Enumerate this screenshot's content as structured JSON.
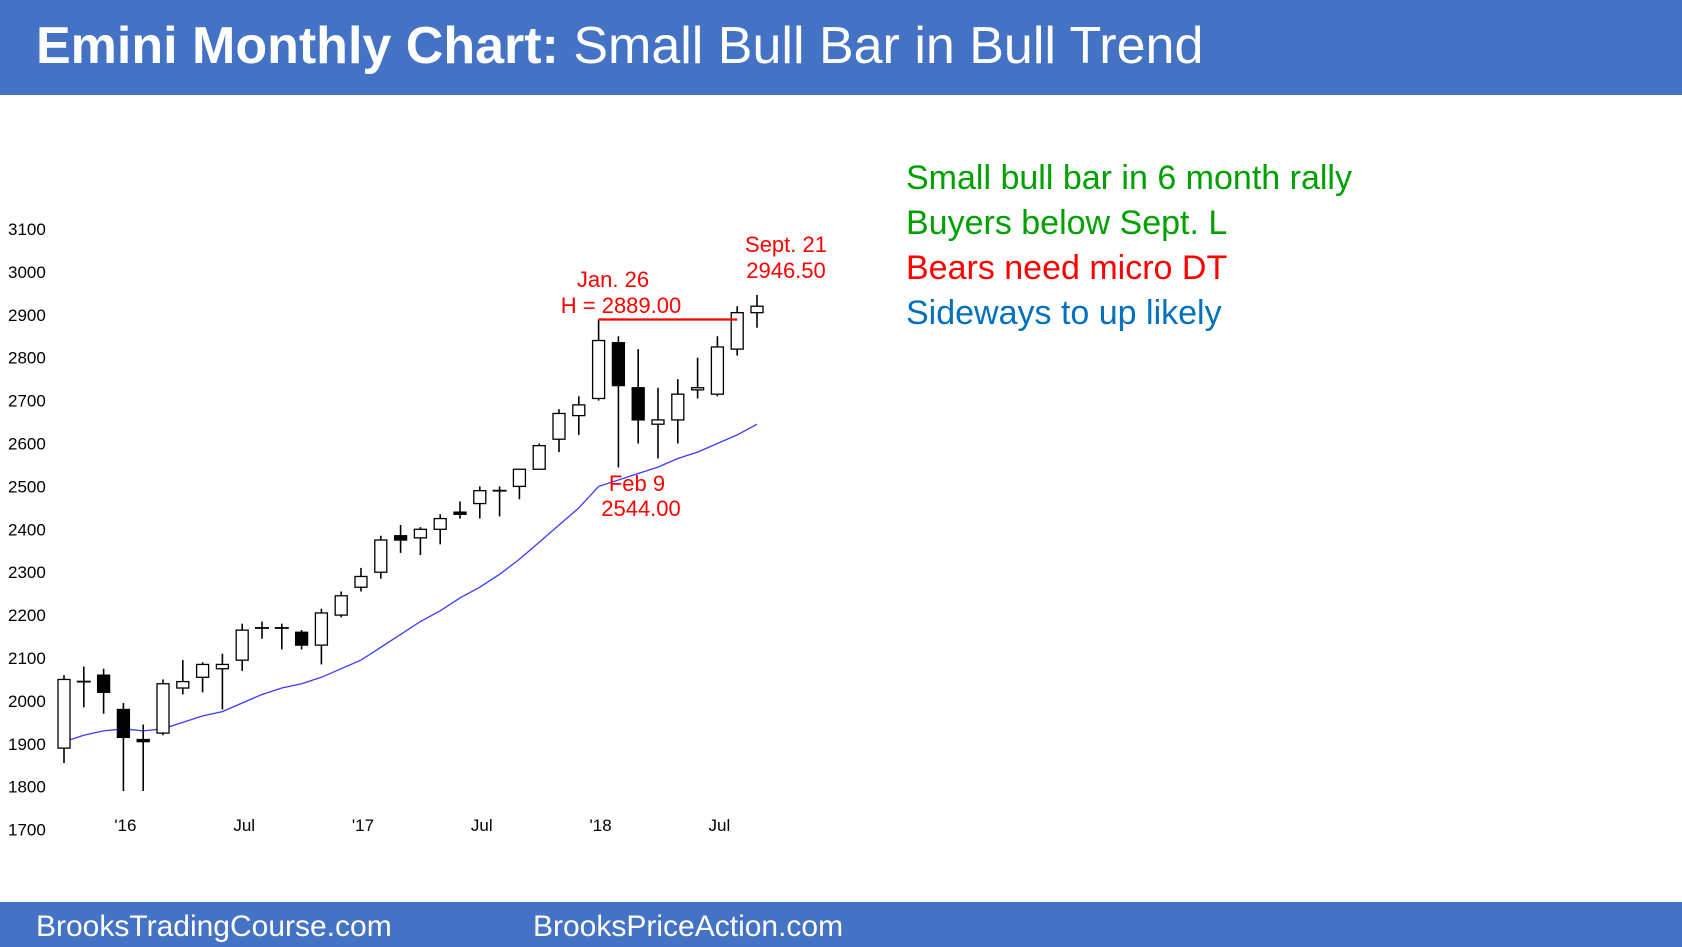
{
  "header": {
    "title_bold": "Emini Monthly Chart:",
    "title_rest": "Small Bull Bar in Bull Trend",
    "background": "#4472c4"
  },
  "footer": {
    "left_link": "BrooksTradingCourse.com",
    "right_link": "BrooksPriceAction.com"
  },
  "notes": [
    {
      "text": "Small bull bar in 6 month rally",
      "color": "#00a000"
    },
    {
      "text": "Buyers below Sept. L",
      "color": "#00a000"
    },
    {
      "text": "Bears need micro DT",
      "color": "#ff0000"
    },
    {
      "text": "Sideways to up likely",
      "color": "#0070c0"
    }
  ],
  "chart_data": {
    "type": "candlestick",
    "title": "",
    "xlabel": "",
    "ylabel": "",
    "ylim": [
      1650,
      3150
    ],
    "yticks": [
      1700,
      1800,
      1900,
      2000,
      2100,
      2200,
      2300,
      2400,
      2500,
      2600,
      2700,
      2800,
      2900,
      3000,
      3100
    ],
    "xticks": [
      {
        "index": 3,
        "label": "'16"
      },
      {
        "index": 9,
        "label": "Jul"
      },
      {
        "index": 15,
        "label": "'17"
      },
      {
        "index": 21,
        "label": "Jul"
      },
      {
        "index": 27,
        "label": "'18"
      },
      {
        "index": 33,
        "label": "Jul"
      }
    ],
    "grid": false,
    "candle_color_up": "#ffffff",
    "candle_color_down": "#000000",
    "candles": [
      {
        "open": 1890,
        "high": 2060,
        "low": 1855,
        "close": 2050
      },
      {
        "open": 2045,
        "high": 2080,
        "low": 1985,
        "close": 2045
      },
      {
        "open": 2060,
        "high": 2075,
        "low": 1970,
        "close": 2020
      },
      {
        "open": 1980,
        "high": 1995,
        "low": 1790,
        "close": 1915
      },
      {
        "open": 1910,
        "high": 1945,
        "low": 1790,
        "close": 1905
      },
      {
        "open": 1925,
        "high": 2050,
        "low": 1920,
        "close": 2040
      },
      {
        "open": 2030,
        "high": 2095,
        "low": 2015,
        "close": 2045
      },
      {
        "open": 2055,
        "high": 2090,
        "low": 2020,
        "close": 2085
      },
      {
        "open": 2075,
        "high": 2110,
        "low": 1980,
        "close": 2085
      },
      {
        "open": 2095,
        "high": 2180,
        "low": 2070,
        "close": 2165
      },
      {
        "open": 2170,
        "high": 2185,
        "low": 2145,
        "close": 2170
      },
      {
        "open": 2170,
        "high": 2180,
        "low": 2120,
        "close": 2170
      },
      {
        "open": 2160,
        "high": 2165,
        "low": 2120,
        "close": 2130
      },
      {
        "open": 2130,
        "high": 2215,
        "low": 2085,
        "close": 2205
      },
      {
        "open": 2200,
        "high": 2255,
        "low": 2195,
        "close": 2245
      },
      {
        "open": 2265,
        "high": 2310,
        "low": 2255,
        "close": 2290
      },
      {
        "open": 2300,
        "high": 2385,
        "low": 2285,
        "close": 2375
      },
      {
        "open": 2385,
        "high": 2410,
        "low": 2345,
        "close": 2375
      },
      {
        "open": 2380,
        "high": 2405,
        "low": 2340,
        "close": 2400
      },
      {
        "open": 2400,
        "high": 2435,
        "low": 2365,
        "close": 2425
      },
      {
        "open": 2440,
        "high": 2465,
        "low": 2425,
        "close": 2435
      },
      {
        "open": 2460,
        "high": 2500,
        "low": 2425,
        "close": 2490
      },
      {
        "open": 2490,
        "high": 2500,
        "low": 2430,
        "close": 2490
      },
      {
        "open": 2500,
        "high": 2540,
        "low": 2470,
        "close": 2540
      },
      {
        "open": 2540,
        "high": 2600,
        "low": 2540,
        "close": 2595
      },
      {
        "open": 2610,
        "high": 2680,
        "low": 2580,
        "close": 2670
      },
      {
        "open": 2665,
        "high": 2710,
        "low": 2620,
        "close": 2690
      },
      {
        "open": 2705,
        "high": 2889,
        "low": 2700,
        "close": 2840
      },
      {
        "open": 2835,
        "high": 2850,
        "low": 2544,
        "close": 2735
      },
      {
        "open": 2730,
        "high": 2820,
        "low": 2600,
        "close": 2655
      },
      {
        "open": 2645,
        "high": 2730,
        "low": 2565,
        "close": 2655
      },
      {
        "open": 2655,
        "high": 2750,
        "low": 2600,
        "close": 2715
      },
      {
        "open": 2725,
        "high": 2800,
        "low": 2705,
        "close": 2730
      },
      {
        "open": 2715,
        "high": 2850,
        "low": 2710,
        "close": 2825
      },
      {
        "open": 2820,
        "high": 2920,
        "low": 2805,
        "close": 2905
      },
      {
        "open": 2905,
        "high": 2946.5,
        "low": 2870,
        "close": 2920
      }
    ],
    "moving_average": [
      1905,
      1920,
      1930,
      1935,
      1930,
      1935,
      1950,
      1965,
      1975,
      1995,
      2015,
      2030,
      2040,
      2055,
      2075,
      2095,
      2125,
      2155,
      2185,
      2210,
      2240,
      2265,
      2295,
      2330,
      2370,
      2410,
      2450,
      2500,
      2515,
      2530,
      2545,
      2565,
      2580,
      2600,
      2620,
      2645
    ],
    "moving_average_color": "#3b3bff",
    "resistance_line": {
      "value": 2889,
      "from_index": 27,
      "to_index": 34,
      "color": "#ff0000"
    },
    "annotations": [
      {
        "lines": [
          "Jan. 26",
          "H = 2889.00"
        ],
        "color": "#ff0000"
      },
      {
        "lines": [
          "Sept. 21",
          "2946.50"
        ],
        "color": "#ff0000"
      },
      {
        "lines": [
          "Feb 9",
          "2544.00"
        ],
        "color": "#ff0000"
      }
    ]
  }
}
